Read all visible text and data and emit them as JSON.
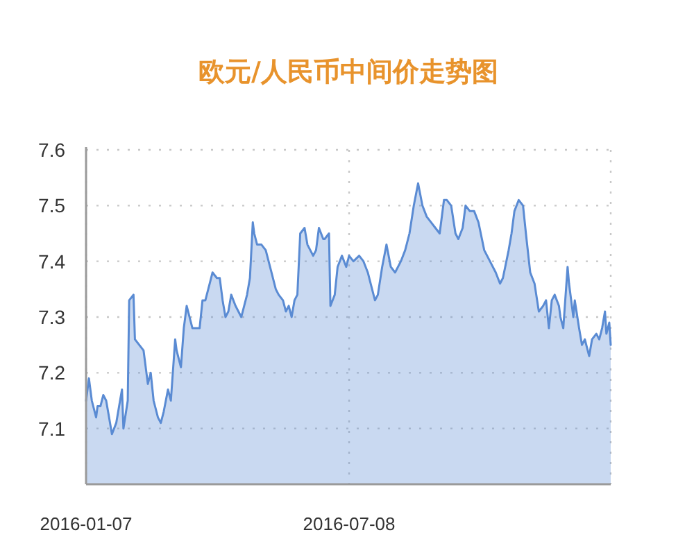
{
  "chart_data": {
    "type": "area",
    "title": "欧元/人民币中间价走势图",
    "x": [
      "2016-01-07",
      "2016-01-09",
      "2016-01-11",
      "2016-01-14",
      "2016-01-15",
      "2016-01-17",
      "2016-01-19",
      "2016-01-21",
      "2016-01-23",
      "2016-01-25",
      "2016-01-28",
      "2016-01-30",
      "2016-02-01",
      "2016-02-02",
      "2016-02-05",
      "2016-02-06",
      "2016-02-09",
      "2016-02-10",
      "2016-02-13",
      "2016-02-16",
      "2016-02-19",
      "2016-02-21",
      "2016-02-23",
      "2016-02-26",
      "2016-02-28",
      "2016-03-01",
      "2016-03-04",
      "2016-03-06",
      "2016-03-09",
      "2016-03-10",
      "2016-03-13",
      "2016-03-15",
      "2016-03-17",
      "2016-03-19",
      "2016-03-21",
      "2016-03-24",
      "2016-03-26",
      "2016-03-28",
      "2016-03-30",
      "2016-04-02",
      "2016-04-04",
      "2016-04-07",
      "2016-04-09",
      "2016-04-11",
      "2016-04-13",
      "2016-04-15",
      "2016-04-17",
      "2016-04-20",
      "2016-04-22",
      "2016-04-24",
      "2016-04-26",
      "2016-04-28",
      "2016-04-30",
      "2016-05-02",
      "2016-05-03",
      "2016-05-05",
      "2016-05-08",
      "2016-05-11",
      "2016-05-13",
      "2016-05-15",
      "2016-05-18",
      "2016-05-20",
      "2016-05-23",
      "2016-05-25",
      "2016-05-27",
      "2016-05-29",
      "2016-05-31",
      "2016-06-02",
      "2016-06-04",
      "2016-06-07",
      "2016-06-09",
      "2016-06-11",
      "2016-06-13",
      "2016-06-15",
      "2016-06-17",
      "2016-06-20",
      "2016-06-21",
      "2016-06-24",
      "2016-06-25",
      "2016-06-28",
      "2016-06-30",
      "2016-07-03",
      "2016-07-06",
      "2016-07-08",
      "2016-07-11",
      "2016-07-15",
      "2016-07-18",
      "2016-07-21",
      "2016-07-24",
      "2016-07-26",
      "2016-07-28",
      "2016-07-31",
      "2016-08-03",
      "2016-08-06",
      "2016-08-09",
      "2016-08-13",
      "2016-08-16",
      "2016-08-19",
      "2016-08-22",
      "2016-08-25",
      "2016-08-28",
      "2016-08-31",
      "2016-09-03",
      "2016-09-06",
      "2016-09-09",
      "2016-09-12",
      "2016-09-14",
      "2016-09-17",
      "2016-09-20",
      "2016-09-22",
      "2016-09-25",
      "2016-09-27",
      "2016-09-30",
      "2016-10-03",
      "2016-10-06",
      "2016-10-10",
      "2016-10-12",
      "2016-10-14",
      "2016-10-18",
      "2016-10-21",
      "2016-10-23",
      "2016-10-27",
      "2016-10-29",
      "2016-10-31",
      "2016-11-03",
      "2016-11-06",
      "2016-11-08",
      "2016-11-11",
      "2016-11-14",
      "2016-11-17",
      "2016-11-20",
      "2016-11-22",
      "2016-11-24",
      "2016-11-26",
      "2016-11-28",
      "2016-12-01",
      "2016-12-02",
      "2016-12-04",
      "2016-12-07",
      "2016-12-08",
      "2016-12-11",
      "2016-12-12",
      "2016-12-15",
      "2016-12-17",
      "2016-12-19",
      "2016-12-22",
      "2016-12-24",
      "2016-12-27",
      "2016-12-29",
      "2016-12-31",
      "2017-01-02",
      "2017-01-03",
      "2017-01-05",
      "2017-01-06"
    ],
    "values": [
      7.15,
      7.19,
      7.15,
      7.12,
      7.14,
      7.14,
      7.16,
      7.15,
      7.12,
      7.09,
      7.11,
      7.14,
      7.17,
      7.1,
      7.15,
      7.33,
      7.34,
      7.26,
      7.25,
      7.24,
      7.18,
      7.2,
      7.15,
      7.12,
      7.11,
      7.13,
      7.17,
      7.15,
      7.26,
      7.24,
      7.21,
      7.28,
      7.32,
      7.3,
      7.28,
      7.28,
      7.28,
      7.33,
      7.33,
      7.36,
      7.38,
      7.37,
      7.37,
      7.33,
      7.3,
      7.31,
      7.34,
      7.32,
      7.31,
      7.3,
      7.32,
      7.34,
      7.37,
      7.47,
      7.45,
      7.43,
      7.43,
      7.42,
      7.4,
      7.38,
      7.35,
      7.34,
      7.33,
      7.31,
      7.32,
      7.3,
      7.33,
      7.34,
      7.45,
      7.46,
      7.43,
      7.42,
      7.41,
      7.42,
      7.46,
      7.44,
      7.44,
      7.45,
      7.32,
      7.34,
      7.39,
      7.41,
      7.39,
      7.41,
      7.4,
      7.41,
      7.4,
      7.38,
      7.35,
      7.33,
      7.34,
      7.39,
      7.43,
      7.39,
      7.38,
      7.4,
      7.42,
      7.45,
      7.5,
      7.54,
      7.5,
      7.48,
      7.47,
      7.46,
      7.45,
      7.51,
      7.51,
      7.5,
      7.45,
      7.44,
      7.46,
      7.5,
      7.49,
      7.49,
      7.47,
      7.42,
      7.41,
      7.4,
      7.38,
      7.36,
      7.37,
      7.42,
      7.45,
      7.49,
      7.51,
      7.5,
      7.45,
      7.38,
      7.36,
      7.31,
      7.32,
      7.33,
      7.28,
      7.33,
      7.34,
      7.32,
      7.3,
      7.28,
      7.39,
      7.36,
      7.3,
      7.33,
      7.28,
      7.25,
      7.26,
      7.23,
      7.26,
      7.27,
      7.26,
      7.28,
      7.31,
      7.27,
      7.29,
      7.25
    ],
    "color": "#5a8bd3",
    "xlim": [
      "2016-01-07",
      "2017-01-06"
    ],
    "xticks": [
      "2016-01-07",
      "2016-07-08",
      {
        "value": "2017-01-06",
        "label": null
      }
    ],
    "ylim": [
      7.0,
      7.6
    ],
    "yticks": [
      7.1,
      7.2,
      7.3,
      7.4,
      7.5,
      7.6
    ],
    "grid": true
  }
}
